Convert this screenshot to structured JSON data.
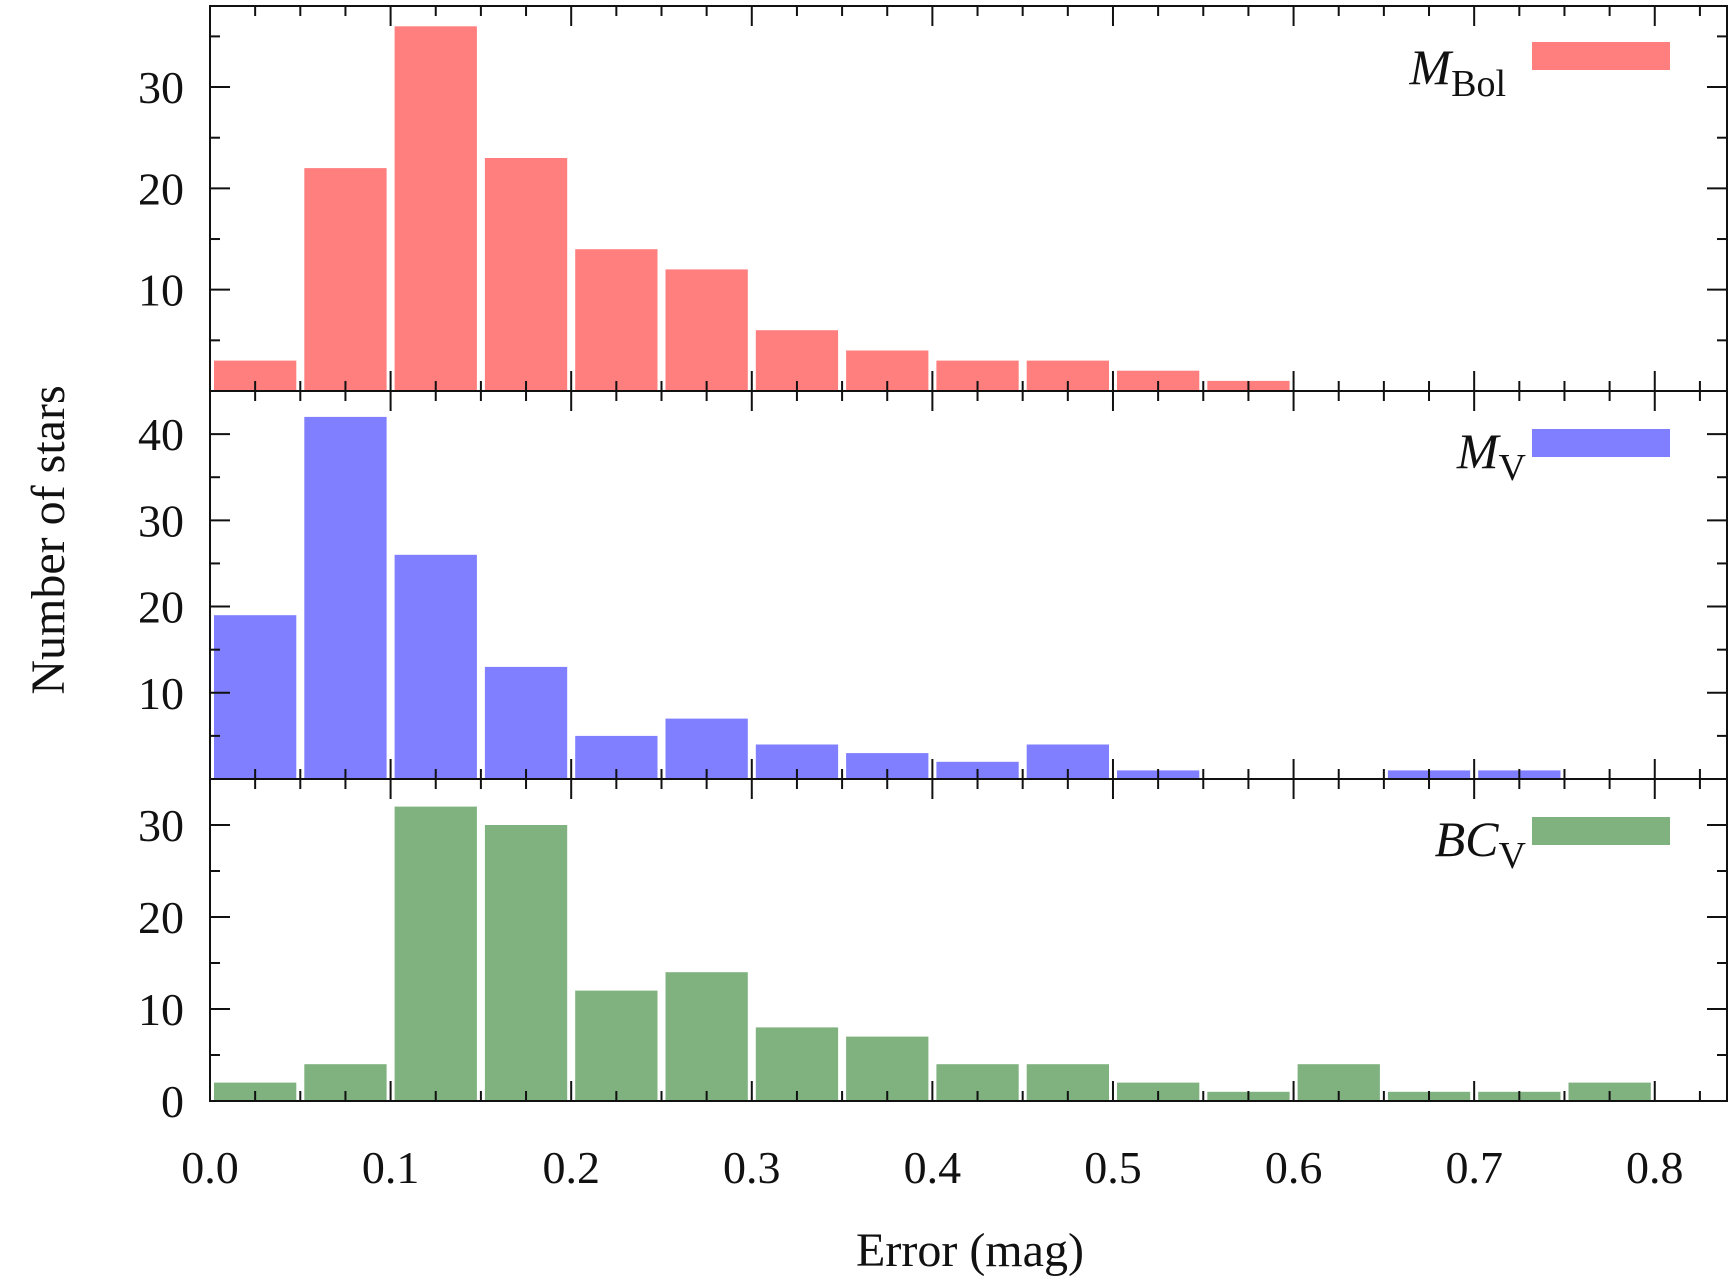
{
  "chart_data": [
    {
      "type": "bar",
      "panel": "top",
      "series": [
        {
          "name_main": "M",
          "name_sub": "Bol",
          "color": "#ff7f7f"
        }
      ],
      "bin_width": 0.05,
      "x": [
        0.025,
        0.075,
        0.125,
        0.175,
        0.225,
        0.275,
        0.325,
        0.375,
        0.425,
        0.475,
        0.525,
        0.575
      ],
      "values": [
        3,
        22,
        36,
        23,
        14,
        12,
        6,
        4,
        3,
        3,
        2,
        1
      ],
      "ylim": [
        0,
        38
      ],
      "yticks": [
        "10",
        "20",
        "30"
      ],
      "ytick_values": [
        10,
        20,
        30
      ]
    },
    {
      "type": "bar",
      "panel": "middle",
      "series": [
        {
          "name_main": "M",
          "name_sub": "V",
          "color": "#7f7fff"
        }
      ],
      "bin_width": 0.05,
      "x": [
        0.025,
        0.075,
        0.125,
        0.175,
        0.225,
        0.275,
        0.325,
        0.375,
        0.425,
        0.475,
        0.525,
        0.675,
        0.725
      ],
      "values": [
        19,
        42,
        26,
        13,
        5,
        7,
        4,
        3,
        2,
        4,
        1,
        1,
        1
      ],
      "ylim": [
        0,
        45
      ],
      "yticks": [
        "10",
        "20",
        "30",
        "40"
      ],
      "ytick_values": [
        10,
        20,
        30,
        40
      ]
    },
    {
      "type": "bar",
      "panel": "bottom",
      "series": [
        {
          "name_main": "BC",
          "name_sub": "V",
          "color": "#7fb27f"
        }
      ],
      "bin_width": 0.05,
      "x": [
        0.025,
        0.075,
        0.125,
        0.175,
        0.225,
        0.275,
        0.325,
        0.375,
        0.425,
        0.475,
        0.525,
        0.575,
        0.625,
        0.675,
        0.725,
        0.775
      ],
      "values": [
        2,
        4,
        32,
        30,
        12,
        14,
        8,
        7,
        4,
        4,
        2,
        1,
        4,
        1,
        1,
        2
      ],
      "ylim": [
        0,
        35
      ],
      "yticks": [
        "0",
        "10",
        "20",
        "30"
      ],
      "ytick_values": [
        0,
        10,
        20,
        30
      ]
    }
  ],
  "axes": {
    "xlabel": "Error (mag)",
    "ylabel": "Number of stars",
    "xlim": [
      0,
      0.84
    ],
    "xticks": [
      "0.0",
      "0.1",
      "0.2",
      "0.3",
      "0.4",
      "0.5",
      "0.6",
      "0.7",
      "0.8"
    ],
    "xtick_values": [
      0,
      0.1,
      0.2,
      0.3,
      0.4,
      0.5,
      0.6,
      0.7,
      0.8
    ],
    "minor_tick_step": 0.025
  }
}
